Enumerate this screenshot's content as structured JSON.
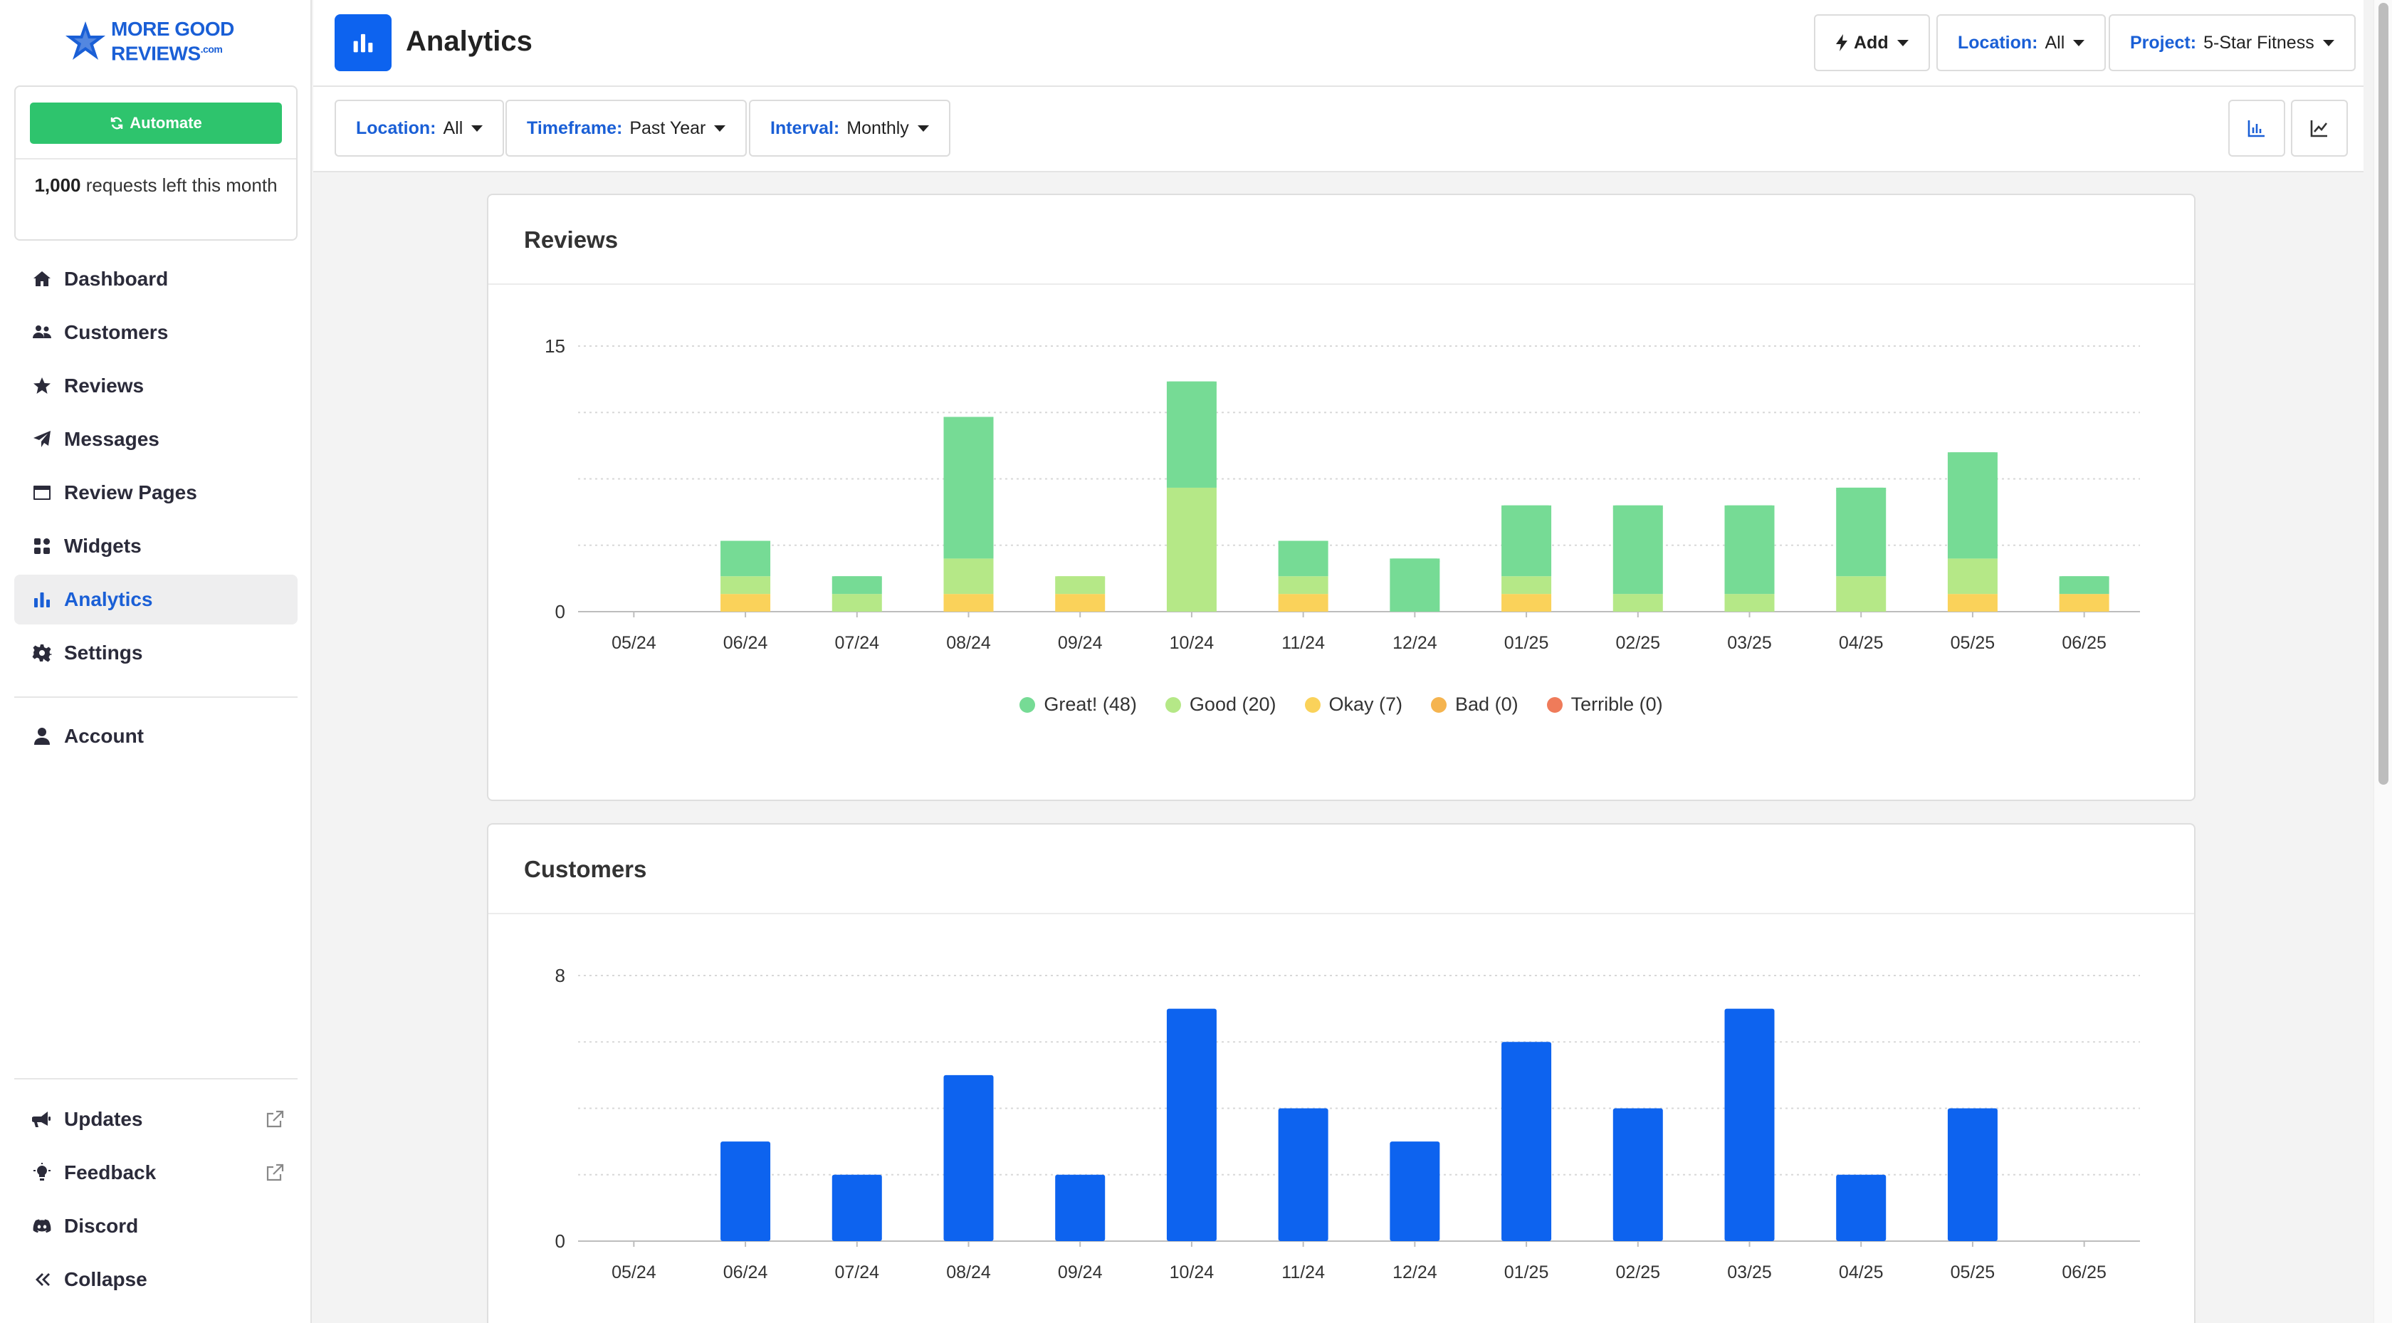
{
  "sidebar": {
    "logo": {
      "line1": "MORE GOOD",
      "line2": "REVIEWS",
      "suffix": ".com"
    },
    "automate_label": "Automate",
    "requests_count": "1,000",
    "requests_text": " requests left this month",
    "nav": [
      {
        "label": "Dashboard",
        "icon": "home-icon"
      },
      {
        "label": "Customers",
        "icon": "users-icon"
      },
      {
        "label": "Reviews",
        "icon": "star-icon"
      },
      {
        "label": "Messages",
        "icon": "paper-plane-icon"
      },
      {
        "label": "Review Pages",
        "icon": "window-icon"
      },
      {
        "label": "Widgets",
        "icon": "widgets-icon"
      },
      {
        "label": "Analytics",
        "icon": "bar-chart-icon",
        "active": true
      },
      {
        "label": "Settings",
        "icon": "gear-icon"
      }
    ],
    "account_label": "Account",
    "bottom": [
      {
        "label": "Updates",
        "icon": "megaphone-icon",
        "external": true
      },
      {
        "label": "Feedback",
        "icon": "lightbulb-icon",
        "external": true
      },
      {
        "label": "Discord",
        "icon": "discord-icon"
      },
      {
        "label": "Collapse",
        "icon": "double-chevron-left-icon"
      }
    ]
  },
  "header": {
    "title": "Analytics",
    "add_label": "Add",
    "location": {
      "key": "Location:",
      "value": "All"
    },
    "project": {
      "key": "Project:",
      "value": "5-Star Fitness"
    }
  },
  "filters": {
    "location": {
      "key": "Location:",
      "value": "All"
    },
    "timeframe": {
      "key": "Timeframe:",
      "value": "Past Year"
    },
    "interval": {
      "key": "Interval:",
      "value": "Monthly"
    }
  },
  "colors": {
    "great": "#76db95",
    "good": "#b5e887",
    "okay": "#fad25a",
    "bad": "#f5b44f",
    "terrible": "#ef7b5a",
    "customers": "#0d63ef",
    "brand": "#1a5fd6",
    "automate": "#2ec46d"
  },
  "chart_data": [
    {
      "type": "bar",
      "stacked": true,
      "title": "Reviews",
      "categories": [
        "05/24",
        "06/24",
        "07/24",
        "08/24",
        "09/24",
        "10/24",
        "11/24",
        "12/24",
        "01/25",
        "02/25",
        "03/25",
        "04/25",
        "05/25",
        "06/25"
      ],
      "ylim": [
        0,
        15
      ],
      "yticks": [
        "0",
        "15"
      ],
      "grid": true,
      "legend_position": "bottom",
      "series": [
        {
          "name": "Okay (7)",
          "key": "okay",
          "values": [
            0,
            1,
            0,
            1,
            1,
            0,
            1,
            0,
            1,
            0,
            0,
            0,
            1,
            1
          ]
        },
        {
          "name": "Good (20)",
          "key": "good",
          "values": [
            0,
            1,
            1,
            2,
            1,
            7,
            1,
            0,
            1,
            1,
            1,
            2,
            2,
            0
          ]
        },
        {
          "name": "Great! (48)",
          "key": "great",
          "values": [
            0,
            2,
            1,
            8,
            0,
            6,
            2,
            3,
            4,
            5,
            5,
            5,
            6,
            1
          ]
        },
        {
          "name": "Bad (0)",
          "key": "bad",
          "values": [
            0,
            0,
            0,
            0,
            0,
            0,
            0,
            0,
            0,
            0,
            0,
            0,
            0,
            0
          ]
        },
        {
          "name": "Terrible (0)",
          "key": "terrible",
          "values": [
            0,
            0,
            0,
            0,
            0,
            0,
            0,
            0,
            0,
            0,
            0,
            0,
            0,
            0
          ]
        }
      ],
      "legend": [
        {
          "label": "Great! (48)",
          "key": "great"
        },
        {
          "label": "Good (20)",
          "key": "good"
        },
        {
          "label": "Okay (7)",
          "key": "okay"
        },
        {
          "label": "Bad (0)",
          "key": "bad"
        },
        {
          "label": "Terrible (0)",
          "key": "terrible"
        }
      ]
    },
    {
      "type": "bar",
      "title": "Customers",
      "categories": [
        "05/24",
        "06/24",
        "07/24",
        "08/24",
        "09/24",
        "10/24",
        "11/24",
        "12/24",
        "01/25",
        "02/25",
        "03/25",
        "04/25",
        "05/25",
        "06/25"
      ],
      "ylim": [
        0,
        8
      ],
      "yticks": [
        "0",
        "8"
      ],
      "grid": true,
      "values": [
        0,
        3,
        2,
        5,
        2,
        7,
        4,
        3,
        6,
        4,
        7,
        2,
        4,
        0
      ]
    }
  ]
}
